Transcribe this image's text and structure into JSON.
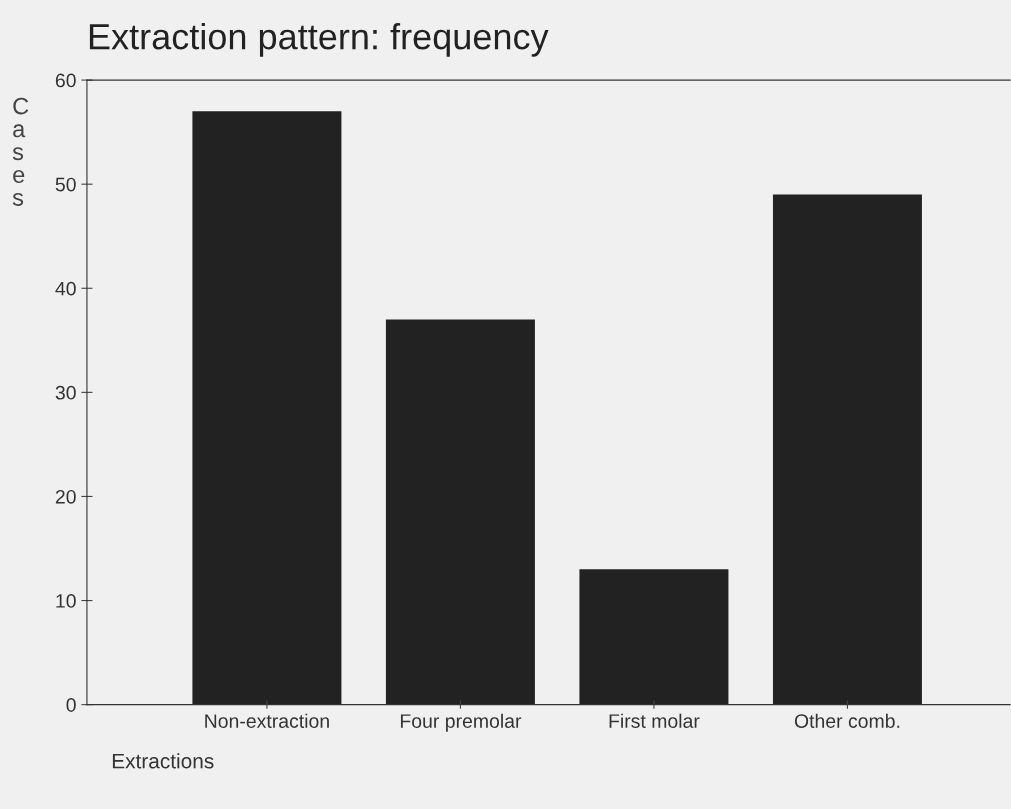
{
  "chart_data": {
    "type": "bar",
    "title": "Extraction pattern: frequency",
    "xlabel": "Extractions",
    "ylabel": "Cases",
    "categories": [
      "Non-extraction",
      "Four premolar",
      "First molar",
      "Other comb."
    ],
    "values": [
      57,
      37,
      13,
      49
    ],
    "color": "#222222",
    "ylim": [
      0,
      60
    ],
    "yticks": [
      0,
      10,
      20,
      30,
      40,
      50,
      60
    ],
    "grid": false
  }
}
